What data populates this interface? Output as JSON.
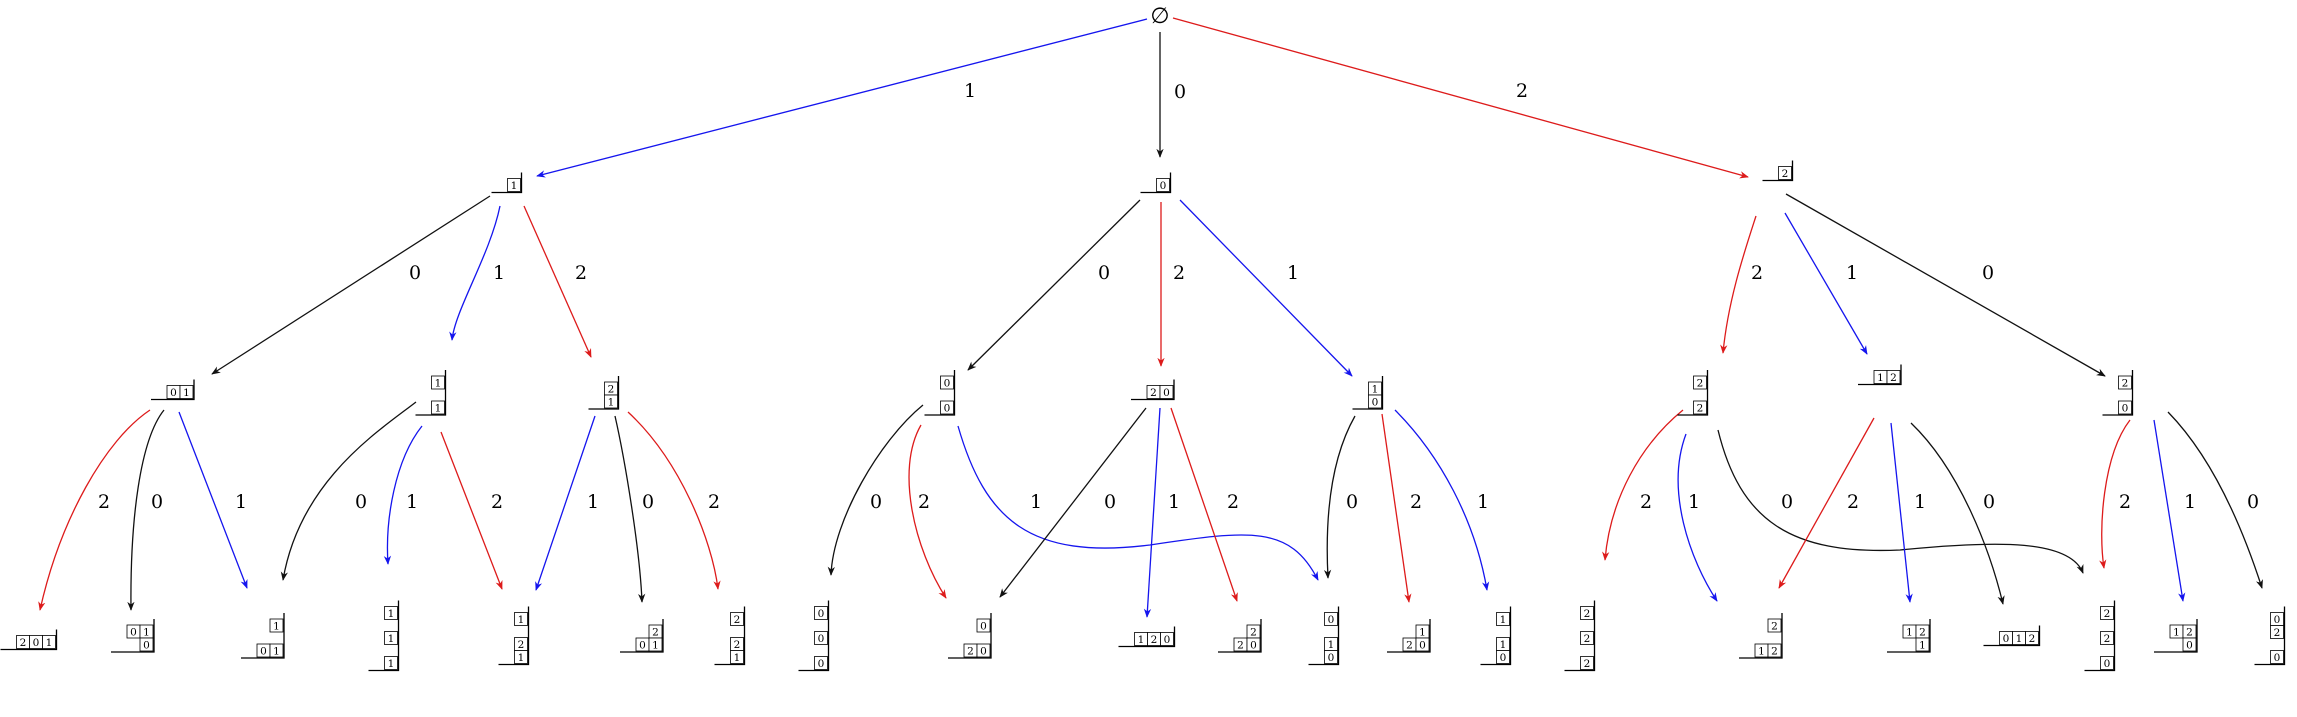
{
  "colors": {
    "1": "#1515ee",
    "0": "#111111",
    "2": "#dd1b1b"
  },
  "root": {
    "id": "root",
    "label": "∅"
  },
  "nodes": [
    {
      "id": "n1",
      "cells": [
        [
          "1"
        ]
      ]
    },
    {
      "id": "n0",
      "cells": [
        [
          "0"
        ]
      ]
    },
    {
      "id": "n2",
      "cells": [
        [
          "2"
        ]
      ]
    },
    {
      "id": "n1_0",
      "cells": [
        [
          "0",
          "1"
        ]
      ]
    },
    {
      "id": "n1_1",
      "cells": [
        [
          "1"
        ],
        [],
        [
          "1"
        ]
      ]
    },
    {
      "id": "n1_2",
      "cells": [
        [
          "2"
        ],
        [
          "1"
        ]
      ]
    },
    {
      "id": "n0_0",
      "cells": [
        [
          "0"
        ],
        [],
        [
          "0"
        ]
      ]
    },
    {
      "id": "n0_2",
      "cells": [
        [
          "2",
          "0"
        ]
      ]
    },
    {
      "id": "n0_1",
      "cells": [
        [
          "1"
        ],
        [
          "0"
        ]
      ]
    },
    {
      "id": "n2_2",
      "cells": [
        [
          "2"
        ],
        [],
        [
          "2"
        ]
      ]
    },
    {
      "id": "n2_1",
      "cells": [
        [
          "1",
          "2"
        ]
      ]
    },
    {
      "id": "n2_0",
      "cells": [
        [
          "2"
        ],
        [],
        [
          "0"
        ]
      ]
    },
    {
      "id": "L01",
      "cells": [
        [
          "2",
          "0",
          "1"
        ]
      ]
    },
    {
      "id": "L02",
      "cells": [
        [
          "0",
          "1"
        ],
        [
          "",
          "0"
        ]
      ]
    },
    {
      "id": "L03",
      "cells": [
        [
          "1"
        ],
        [],
        [
          "0",
          "1"
        ]
      ]
    },
    {
      "id": "L04",
      "cells": [
        [
          "1"
        ],
        [],
        [
          "1"
        ],
        [],
        [
          "1"
        ]
      ]
    },
    {
      "id": "L05",
      "cells": [
        [
          "1"
        ],
        [],
        [
          "2"
        ],
        [
          "1"
        ]
      ]
    },
    {
      "id": "L06",
      "cells": [
        [
          "",
          "2"
        ],
        [
          "0",
          "1"
        ]
      ]
    },
    {
      "id": "L07",
      "cells": [
        [
          "2"
        ],
        [],
        [
          "2"
        ],
        [
          "1"
        ]
      ]
    },
    {
      "id": "L08",
      "cells": [
        [
          "0"
        ],
        [],
        [
          "0"
        ],
        [],
        [
          "0"
        ]
      ]
    },
    {
      "id": "L09",
      "cells": [
        [
          "0"
        ],
        [],
        [
          "2",
          "0"
        ]
      ]
    },
    {
      "id": "L10",
      "cells": [
        [
          "1",
          "2",
          "0"
        ]
      ]
    },
    {
      "id": "L11",
      "cells": [
        [
          "",
          "2"
        ],
        [
          "2",
          "0"
        ]
      ]
    },
    {
      "id": "L12",
      "cells": [
        [
          "0"
        ],
        [],
        [
          "1"
        ],
        [
          "0"
        ]
      ]
    },
    {
      "id": "L13",
      "cells": [
        [
          "",
          "1"
        ],
        [
          "2",
          "0"
        ]
      ]
    },
    {
      "id": "L14",
      "cells": [
        [
          "1"
        ],
        [],
        [
          "1"
        ],
        [
          "0"
        ]
      ]
    },
    {
      "id": "L15",
      "cells": [
        [
          "2"
        ],
        [],
        [
          "2"
        ],
        [],
        [
          "2"
        ]
      ]
    },
    {
      "id": "L16",
      "cells": [
        [
          "2"
        ],
        [],
        [
          "1",
          "2"
        ]
      ]
    },
    {
      "id": "L17",
      "cells": [
        [
          "1",
          "2"
        ],
        [
          "",
          "1"
        ]
      ]
    },
    {
      "id": "L18",
      "cells": [
        [
          "0",
          "1",
          "2"
        ]
      ]
    },
    {
      "id": "L19",
      "cells": [
        [
          "2"
        ],
        [],
        [
          "2"
        ],
        [],
        [
          "0"
        ]
      ]
    },
    {
      "id": "L20",
      "cells": [
        [
          "1",
          "2"
        ],
        [
          "",
          "0"
        ]
      ]
    },
    {
      "id": "L21",
      "cells": [
        [
          "0"
        ],
        [
          "2"
        ],
        [],
        [
          "0"
        ]
      ]
    }
  ],
  "edges": [
    {
      "from": "root",
      "to": "n1",
      "label": "1"
    },
    {
      "from": "root",
      "to": "n0",
      "label": "0"
    },
    {
      "from": "root",
      "to": "n2",
      "label": "2"
    },
    {
      "from": "n1",
      "to": "n1_0",
      "label": "0"
    },
    {
      "from": "n1",
      "to": "n1_1",
      "label": "1"
    },
    {
      "from": "n1",
      "to": "n1_2",
      "label": "2"
    },
    {
      "from": "n0",
      "to": "n0_0",
      "label": "0"
    },
    {
      "from": "n0",
      "to": "n0_2",
      "label": "2"
    },
    {
      "from": "n0",
      "to": "n0_1",
      "label": "1"
    },
    {
      "from": "n2",
      "to": "n2_2",
      "label": "2"
    },
    {
      "from": "n2",
      "to": "n2_1",
      "label": "1"
    },
    {
      "from": "n2",
      "to": "n2_0",
      "label": "0"
    },
    {
      "from": "n1_0",
      "to": "L01",
      "label": "2"
    },
    {
      "from": "n1_0",
      "to": "L02",
      "label": "0"
    },
    {
      "from": "n1_0",
      "to": "L03",
      "label": "1"
    },
    {
      "from": "n1_1",
      "to": "L03",
      "label": "0"
    },
    {
      "from": "n1_1",
      "to": "L04",
      "label": "1"
    },
    {
      "from": "n1_1",
      "to": "L05",
      "label": "2"
    },
    {
      "from": "n1_2",
      "to": "L05",
      "label": "1"
    },
    {
      "from": "n1_2",
      "to": "L06",
      "label": "0"
    },
    {
      "from": "n1_2",
      "to": "L07",
      "label": "2"
    },
    {
      "from": "n0_0",
      "to": "L08",
      "label": "0"
    },
    {
      "from": "n0_0",
      "to": "L09",
      "label": "2"
    },
    {
      "from": "n0_0",
      "to": "L12",
      "label": "1"
    },
    {
      "from": "n0_2",
      "to": "L09",
      "label": "0"
    },
    {
      "from": "n0_2",
      "to": "L10",
      "label": "1"
    },
    {
      "from": "n0_2",
      "to": "L11",
      "label": "2"
    },
    {
      "from": "n0_1",
      "to": "L12",
      "label": "0"
    },
    {
      "from": "n0_1",
      "to": "L13",
      "label": "2"
    },
    {
      "from": "n0_1",
      "to": "L14",
      "label": "1"
    },
    {
      "from": "n2_2",
      "to": "L15",
      "label": "2"
    },
    {
      "from": "n2_2",
      "to": "L16",
      "label": "1"
    },
    {
      "from": "n2_2",
      "to": "L19",
      "label": "0"
    },
    {
      "from": "n2_1",
      "to": "L16",
      "label": "2"
    },
    {
      "from": "n2_1",
      "to": "L17",
      "label": "1"
    },
    {
      "from": "n2_1",
      "to": "L18",
      "label": "0"
    },
    {
      "from": "n2_0",
      "to": "L19",
      "label": "2"
    },
    {
      "from": "n2_0",
      "to": "L20",
      "label": "1"
    },
    {
      "from": "n2_0",
      "to": "L21",
      "label": "0"
    }
  ]
}
